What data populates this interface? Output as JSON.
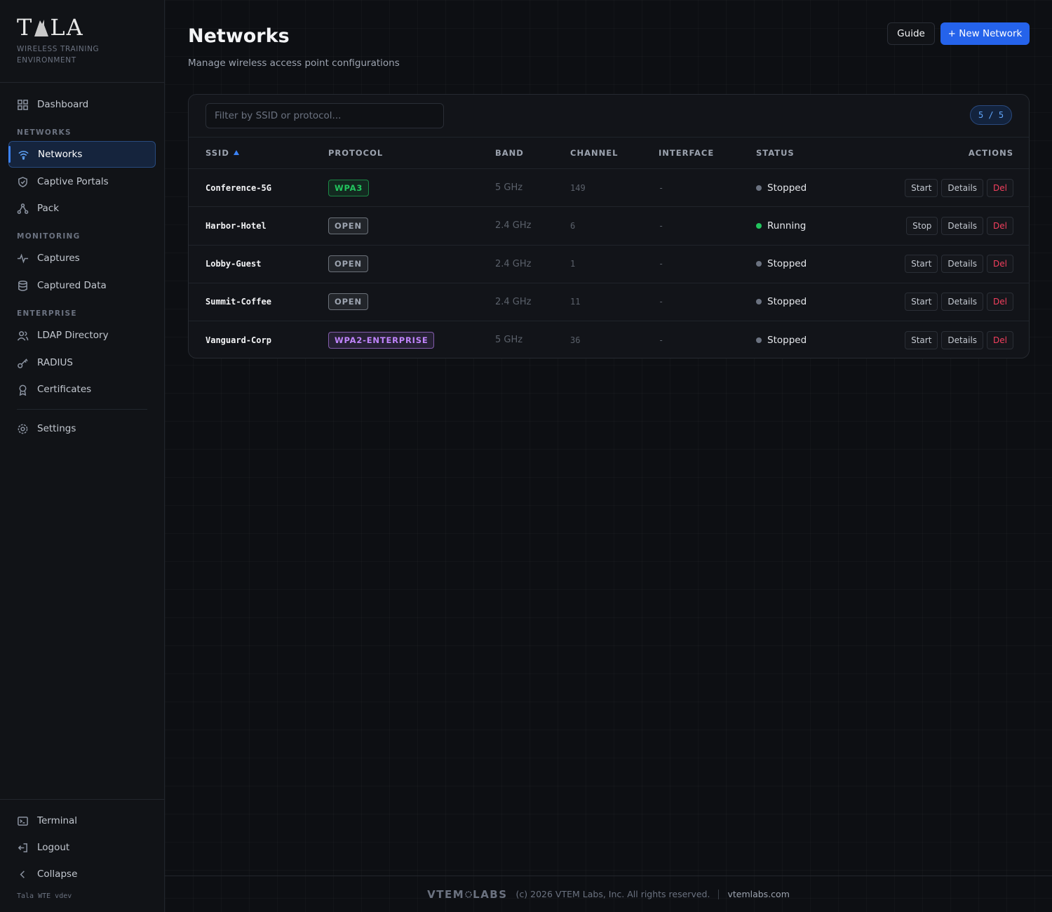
{
  "sidebar": {
    "logo_start": "T",
    "logo_end": "LA",
    "tagline": "WIRELESS TRAINING ENVIRONMENT",
    "dashboard": "Dashboard",
    "groups": [
      {
        "title": "NETWORKS",
        "items": [
          "Networks",
          "Captive Portals",
          "Pack"
        ]
      },
      {
        "title": "MONITORING",
        "items": [
          "Captures",
          "Captured Data"
        ]
      },
      {
        "title": "ENTERPRISE",
        "items": [
          "LDAP Directory",
          "RADIUS",
          "Certificates"
        ]
      }
    ],
    "settings": "Settings",
    "bottom": [
      "Terminal",
      "Logout",
      "Collapse"
    ],
    "version": "Tala WTE vdev"
  },
  "header": {
    "title": "Networks",
    "subtitle": "Manage wireless access point configurations",
    "buttons": [
      "Guide",
      "+ New Network"
    ]
  },
  "table": {
    "filter_placeholder": "Filter by SSID or protocol...",
    "count": "5 / 5",
    "columns": [
      "SSID",
      "PROTOCOL",
      "BAND",
      "CHANNEL",
      "INTERFACE",
      "STATUS",
      "ACTIONS"
    ],
    "rows": [
      {
        "ssid": "Conference-5G",
        "protocol": "WPA3",
        "protocol_color": "#22c55e",
        "band": "5 GHz",
        "channel": 149,
        "interface": "-",
        "status": "Stopped",
        "status_color": "#6b7280",
        "actions": [
          "Start",
          "Details",
          "Del"
        ]
      },
      {
        "ssid": "Harbor-Hotel",
        "protocol": "OPEN",
        "protocol_color": "#9ca3af",
        "band": "2.4 GHz",
        "channel": 6,
        "interface": "-",
        "status": "Running",
        "status_color": "#22c55e",
        "actions": [
          "Stop",
          "Details",
          "Del"
        ]
      },
      {
        "ssid": "Lobby-Guest",
        "protocol": "OPEN",
        "protocol_color": "#9ca3af",
        "band": "2.4 GHz",
        "channel": 1,
        "interface": "-",
        "status": "Stopped",
        "status_color": "#6b7280",
        "actions": [
          "Start",
          "Details",
          "Del"
        ]
      },
      {
        "ssid": "Summit-Coffee",
        "protocol": "OPEN",
        "protocol_color": "#9ca3af",
        "band": "2.4 GHz",
        "channel": 11,
        "interface": "-",
        "status": "Stopped",
        "status_color": "#6b7280",
        "actions": [
          "Start",
          "Details",
          "Del"
        ]
      },
      {
        "ssid": "Vanguard-Corp",
        "protocol": "WPA2-ENTERPRISE",
        "protocol_color": "#c084fc",
        "band": "5 GHz",
        "channel": 36,
        "interface": "-",
        "status": "Stopped",
        "status_color": "#6b7280",
        "actions": [
          "Start",
          "Details",
          "Del"
        ]
      }
    ]
  },
  "footer": {
    "logo_start": "VTEM",
    "logo_end": "LABS",
    "copyright": "(c) 2026 VTEM Labs, Inc. All rights reserved.",
    "link": "vtemlabs.com"
  }
}
